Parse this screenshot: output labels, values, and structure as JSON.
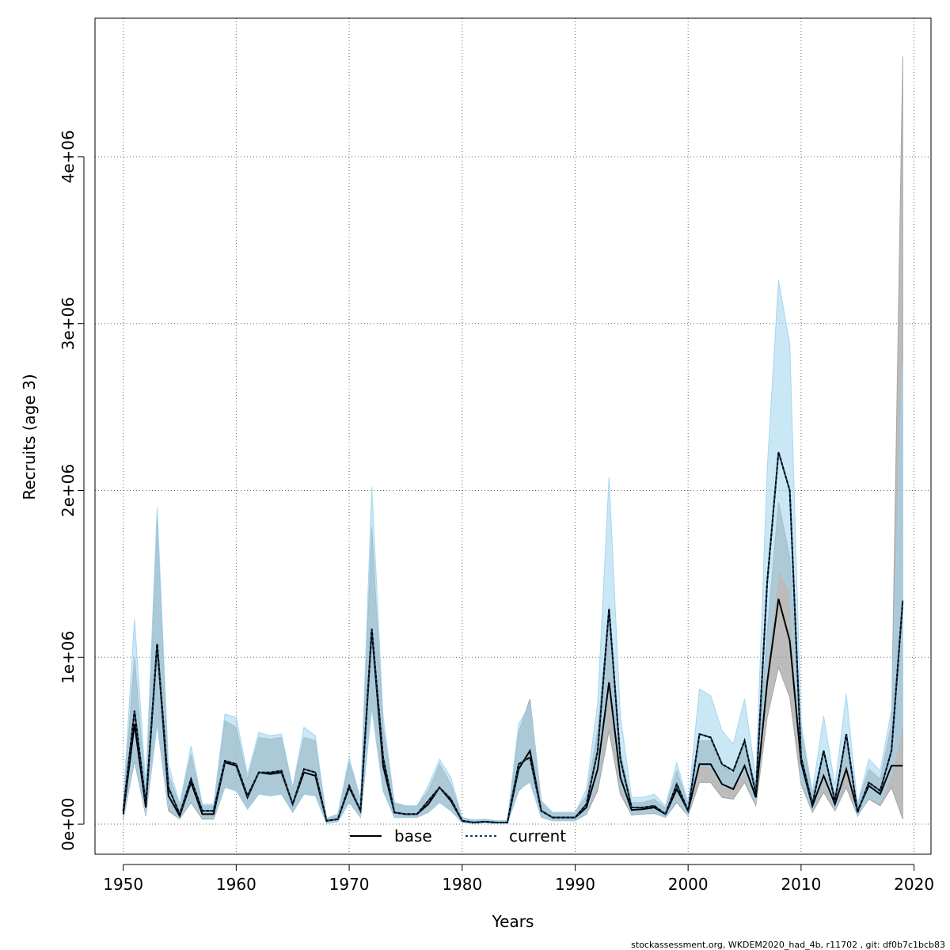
{
  "chart_data": {
    "type": "line",
    "xlabel": "Years",
    "ylabel": "Recruits (age 3)",
    "xlim": [
      1947.5,
      2021.5
    ],
    "ylim": [
      -180000,
      4830000
    ],
    "x_ticks": [
      1950,
      1960,
      1970,
      1980,
      1990,
      2000,
      2010,
      2020
    ],
    "x_tick_labels": [
      "1950",
      "1960",
      "1970",
      "1980",
      "1990",
      "2000",
      "2010",
      "2020"
    ],
    "y_ticks": [
      0,
      1000000,
      2000000,
      3000000,
      4000000
    ],
    "y_tick_labels": [
      "0e+00",
      "1e+06",
      "2e+06",
      "3e+06",
      "4e+06"
    ],
    "grid": true,
    "legend": {
      "placement": "bottom",
      "entries": [
        "base",
        "current"
      ]
    },
    "colors": {
      "base_line": "#000000",
      "base_band": "#a0a0a0",
      "current_line": "#1a3a5c",
      "current_band": "#9fd4ef"
    },
    "x": [
      1950,
      1951,
      1952,
      1953,
      1954,
      1955,
      1956,
      1957,
      1958,
      1959,
      1960,
      1961,
      1962,
      1963,
      1964,
      1965,
      1966,
      1967,
      1968,
      1969,
      1970,
      1971,
      1972,
      1973,
      1974,
      1975,
      1976,
      1977,
      1978,
      1979,
      1980,
      1981,
      1982,
      1983,
      1984,
      1985,
      1986,
      1987,
      1988,
      1989,
      1990,
      1991,
      1992,
      1993,
      1994,
      1995,
      1996,
      1997,
      1998,
      1999,
      2000,
      2001,
      2002,
      2003,
      2004,
      2005,
      2006,
      2007,
      2008,
      2009,
      2010,
      2011,
      2012,
      2013,
      2014,
      2015,
      2016,
      2017,
      2018,
      2019
    ],
    "series": [
      {
        "name": "base",
        "values": [
          60000,
          600000,
          100000,
          1080000,
          170000,
          50000,
          250000,
          60000,
          60000,
          370000,
          350000,
          160000,
          310000,
          300000,
          310000,
          120000,
          310000,
          290000,
          20000,
          30000,
          220000,
          80000,
          1160000,
          350000,
          70000,
          60000,
          60000,
          120000,
          220000,
          140000,
          20000,
          10000,
          15000,
          10000,
          10000,
          330000,
          440000,
          80000,
          40000,
          40000,
          40000,
          100000,
          330000,
          850000,
          280000,
          85000,
          90000,
          100000,
          60000,
          210000,
          80000,
          360000,
          360000,
          240000,
          210000,
          350000,
          160000,
          850000,
          1350000,
          1100000,
          370000,
          110000,
          290000,
          120000,
          330000,
          80000,
          230000,
          180000,
          350000,
          350000
        ],
        "lower": [
          30000,
          380000,
          50000,
          600000,
          80000,
          30000,
          130000,
          30000,
          30000,
          220000,
          200000,
          90000,
          180000,
          170000,
          180000,
          70000,
          180000,
          170000,
          5000,
          15000,
          130000,
          40000,
          700000,
          200000,
          40000,
          40000,
          40000,
          70000,
          130000,
          80000,
          10000,
          5000,
          8000,
          5000,
          5000,
          200000,
          260000,
          40000,
          20000,
          20000,
          20000,
          60000,
          200000,
          560000,
          180000,
          55000,
          60000,
          65000,
          40000,
          130000,
          50000,
          250000,
          250000,
          160000,
          150000,
          250000,
          110000,
          640000,
          940000,
          760000,
          240000,
          70000,
          190000,
          80000,
          220000,
          50000,
          150000,
          110000,
          220000,
          30000
        ],
        "upper": [
          120000,
          1000000,
          180000,
          1850000,
          300000,
          110000,
          420000,
          110000,
          110000,
          620000,
          580000,
          270000,
          520000,
          510000,
          520000,
          220000,
          520000,
          500000,
          35000,
          60000,
          370000,
          150000,
          1780000,
          580000,
          130000,
          110000,
          110000,
          200000,
          360000,
          240000,
          40000,
          25000,
          30000,
          20000,
          20000,
          550000,
          750000,
          140000,
          70000,
          70000,
          70000,
          170000,
          560000,
          1300000,
          430000,
          130000,
          130000,
          150000,
          95000,
          320000,
          120000,
          500000,
          500000,
          350000,
          300000,
          480000,
          230000,
          1150000,
          1930000,
          1600000,
          560000,
          170000,
          430000,
          180000,
          480000,
          120000,
          330000,
          270000,
          600000,
          4600000
        ]
      },
      {
        "name": "current",
        "values": [
          80000,
          680000,
          120000,
          1080000,
          220000,
          60000,
          270000,
          80000,
          80000,
          380000,
          360000,
          170000,
          310000,
          310000,
          320000,
          120000,
          330000,
          310000,
          20000,
          30000,
          230000,
          80000,
          1170000,
          400000,
          70000,
          60000,
          60000,
          140000,
          220000,
          150000,
          20000,
          10000,
          15000,
          10000,
          10000,
          360000,
          400000,
          80000,
          40000,
          40000,
          40000,
          120000,
          440000,
          1290000,
          390000,
          100000,
          100000,
          110000,
          60000,
          240000,
          80000,
          540000,
          520000,
          360000,
          320000,
          500000,
          180000,
          1450000,
          2230000,
          2000000,
          400000,
          120000,
          440000,
          140000,
          540000,
          70000,
          250000,
          200000,
          440000,
          1340000
        ],
        "lower": [
          40000,
          400000,
          60000,
          600000,
          100000,
          30000,
          140000,
          40000,
          40000,
          220000,
          200000,
          90000,
          180000,
          170000,
          180000,
          70000,
          180000,
          170000,
          5000,
          15000,
          130000,
          40000,
          700000,
          200000,
          40000,
          40000,
          40000,
          70000,
          130000,
          80000,
          10000,
          5000,
          8000,
          5000,
          5000,
          210000,
          250000,
          40000,
          20000,
          20000,
          20000,
          70000,
          270000,
          800000,
          240000,
          60000,
          65000,
          70000,
          40000,
          150000,
          50000,
          350000,
          340000,
          230000,
          210000,
          320000,
          120000,
          950000,
          1530000,
          1400000,
          260000,
          80000,
          280000,
          90000,
          340000,
          45000,
          160000,
          130000,
          300000,
          600000
        ],
        "upper": [
          140000,
          1230000,
          240000,
          1900000,
          360000,
          120000,
          470000,
          120000,
          120000,
          660000,
          640000,
          300000,
          550000,
          530000,
          540000,
          220000,
          580000,
          530000,
          35000,
          60000,
          400000,
          150000,
          2020000,
          650000,
          130000,
          110000,
          110000,
          230000,
          390000,
          280000,
          40000,
          25000,
          30000,
          20000,
          20000,
          600000,
          720000,
          140000,
          70000,
          70000,
          70000,
          210000,
          730000,
          2080000,
          650000,
          160000,
          160000,
          180000,
          110000,
          370000,
          130000,
          810000,
          770000,
          560000,
          480000,
          750000,
          280000,
          2130000,
          3260000,
          2880000,
          610000,
          190000,
          650000,
          230000,
          780000,
          120000,
          390000,
          320000,
          680000,
          2760000
        ]
      }
    ]
  },
  "footer": "stockassessment.org, WKDEM2020_had_4b, r11702 , git: df0b7c1bcb83"
}
